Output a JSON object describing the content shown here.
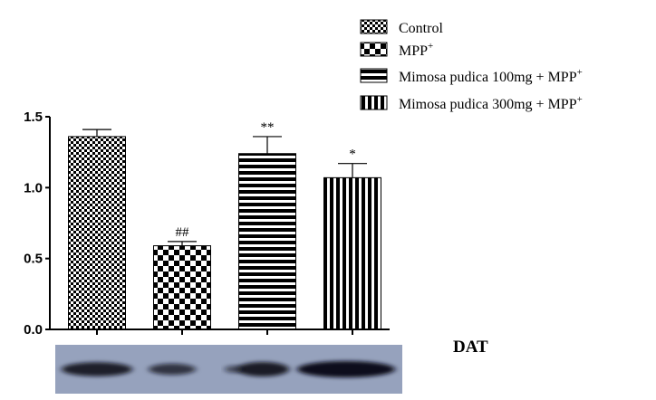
{
  "chart_data": {
    "type": "bar",
    "categories": [
      "Control",
      "MPP+",
      "Mimosa pudica 100mg + MPP+",
      "Mimosa pudica 300mg + MPP+"
    ],
    "values": [
      1.36,
      0.59,
      1.24,
      1.07
    ],
    "errors": [
      0.05,
      0.03,
      0.12,
      0.1
    ],
    "annotations": [
      "",
      "##",
      "**",
      "*"
    ],
    "ylim": [
      0,
      1.5
    ],
    "yticks": [
      "0.0",
      "0.5",
      "1.0",
      "1.5"
    ],
    "legend": [
      {
        "label": "Control",
        "sup": "",
        "pattern": "checker-fine"
      },
      {
        "label": "MPP",
        "sup": "+",
        "pattern": "checker-coarse"
      },
      {
        "label": "Mimosa pudica 100mg + MPP",
        "sup": "+",
        "pattern": "hstripes"
      },
      {
        "label": "Mimosa pudica 300mg + MPP",
        "sup": "+",
        "pattern": "vstripes"
      }
    ],
    "legend_position": "top-right",
    "blot_label": "DAT",
    "blot_band_intensities": [
      0.75,
      0.45,
      0.8,
      1.0
    ]
  }
}
